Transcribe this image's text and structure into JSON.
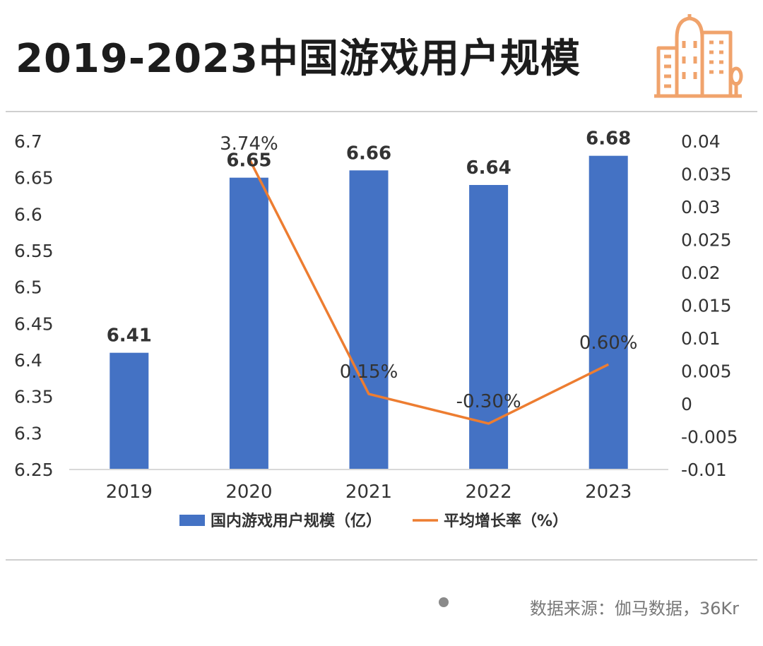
{
  "header": {
    "title": "2019-2023中国游戏用户规模",
    "icon": "building-icon"
  },
  "footer": {
    "source": "数据来源：伽马数据，36Kr"
  },
  "colors": {
    "bar": "#4472c4",
    "line": "#ed7d31",
    "text": "#333333",
    "axis": "#d9d9d9"
  },
  "chart_data": {
    "type": "bar",
    "title": "2019-2023中国游戏用户规模",
    "categories": [
      "2019",
      "2020",
      "2021",
      "2022",
      "2023"
    ],
    "series": [
      {
        "name": "国内游戏用户规模（亿）",
        "type": "bar",
        "axis": "left",
        "values": [
          6.41,
          6.65,
          6.66,
          6.64,
          6.68
        ],
        "labels": [
          "6.41",
          "6.65",
          "6.66",
          "6.64",
          "6.68"
        ]
      },
      {
        "name": "平均增长率（%）",
        "type": "line",
        "axis": "right",
        "values": [
          null,
          0.0374,
          0.0015,
          -0.003,
          0.006
        ],
        "labels": [
          "",
          "3.74%",
          "0.15%",
          "-0.30%",
          "0.60%"
        ]
      }
    ],
    "y_left": {
      "range": [
        6.25,
        6.7
      ],
      "ticks": [
        "6.25",
        "6.3",
        "6.35",
        "6.4",
        "6.45",
        "6.5",
        "6.55",
        "6.6",
        "6.65",
        "6.7"
      ]
    },
    "y_right": {
      "range": [
        -0.01,
        0.04
      ],
      "ticks": [
        "-0.01",
        "-0.005",
        "0",
        "0.005",
        "0.01",
        "0.015",
        "0.02",
        "0.025",
        "0.03",
        "0.035",
        "0.04"
      ]
    },
    "grid": false,
    "legend": "bottom"
  }
}
